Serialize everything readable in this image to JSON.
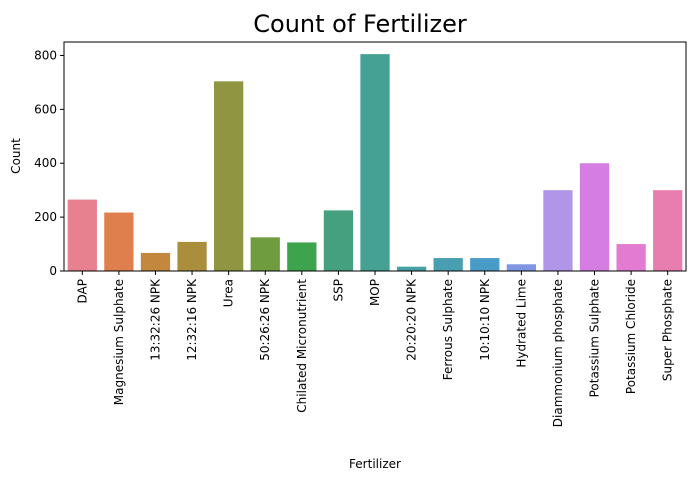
{
  "chart_data": {
    "type": "bar",
    "title": "Count of Fertilizer",
    "xlabel": "Fertilizer",
    "ylabel": "Count",
    "ylim": [
      0,
      850
    ],
    "yticks": [
      "0",
      "200",
      "400",
      "600",
      "800"
    ],
    "grid": false,
    "categories": [
      "DAP",
      "Magnesium Sulphate",
      "13:32:26 NPK",
      "12:32:16 NPK",
      "Urea",
      "50:26:26 NPK",
      "Chilated Micronutrient",
      "SSP",
      "MOP",
      "20:20:20 NPK",
      "Ferrous Sulphate",
      "10:10:10 NPK",
      "Hydrated Lime",
      "Diammonium phosphate",
      "Potassium Sulphate",
      "Potassium Chloride",
      "Super Phosphate"
    ],
    "values": [
      265,
      217,
      67,
      108,
      704,
      125,
      106,
      225,
      805,
      16,
      48,
      48,
      25,
      300,
      400,
      100,
      300
    ],
    "colors": [
      "#e8818f",
      "#e07f4e",
      "#c3883e",
      "#aa8e3b",
      "#8f9540",
      "#6f9c3f",
      "#3da34d",
      "#44a07f",
      "#45a193",
      "#46a2a5",
      "#479fb1",
      "#4a9cc8",
      "#8096e3",
      "#b195e9",
      "#d67de4",
      "#e47bd3",
      "#e87daf"
    ]
  }
}
